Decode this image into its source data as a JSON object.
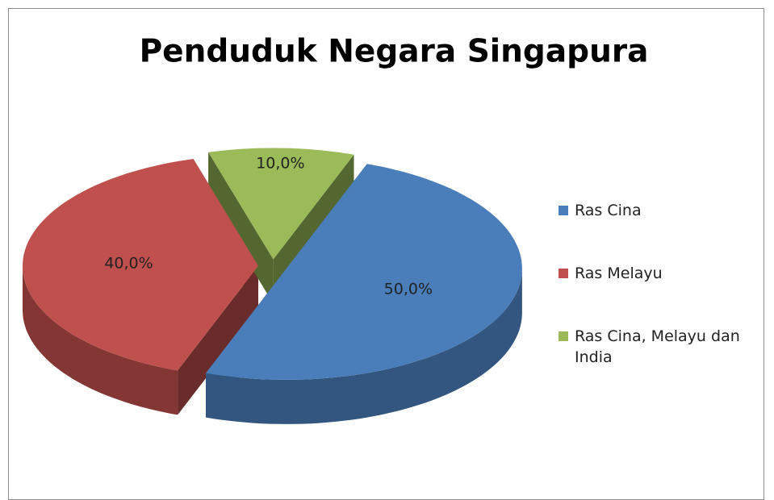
{
  "chart_data": {
    "type": "pie",
    "title": "Penduduk Negara Singapura",
    "categories": [
      "Ras Cina",
      "Ras Melayu",
      "Ras Cina, Melayu dan India"
    ],
    "values": [
      50,
      40,
      10
    ],
    "value_labels": [
      "50,0%",
      "40,0%",
      "10,0%"
    ],
    "colors": [
      "#4a7ebb",
      "#c0504d",
      "#9bbb59"
    ],
    "legend": "right"
  }
}
